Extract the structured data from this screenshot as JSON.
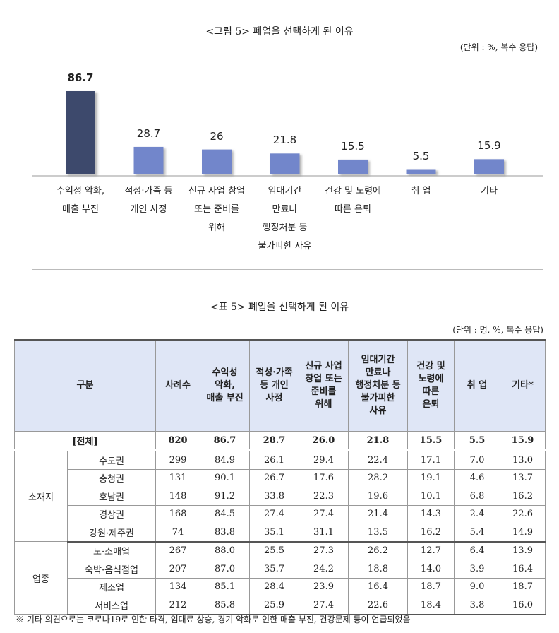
{
  "chart_data": {
    "type": "bar",
    "title": "<그림 5> 폐업을 선택하게 된 이유",
    "subtitle": "(단위 : %, 복수 응답)",
    "categories": [
      "수익성 악화,\n매출 부진",
      "적성·가족 등\n개인 사정",
      "신규 사업 창업\n또는 준비를\n위해",
      "임대기간\n만료나\n행정처분 등\n불가피한 사유",
      "건강 및 노령에\n따른 은퇴",
      "취 업",
      "기타"
    ],
    "values": [
      86.7,
      28.7,
      26.0,
      21.8,
      15.5,
      5.5,
      15.9
    ],
    "colors": [
      "#3d4a6c",
      "#7286cb",
      "#7286cb",
      "#7286cb",
      "#7286cb",
      "#7286cb",
      "#7286cb"
    ]
  },
  "table": {
    "title": "<표 5> 폐업을 선택하게 된 이유",
    "unit": "(단위 : 명, %, 복수 응답)",
    "header": [
      "구분",
      "사례수",
      "수익성\n악화,\n매출 부진",
      "적성·가족\n등 개인\n사정",
      "신규 사업\n창업 또는\n준비를\n위해",
      "임대기간\n만료나\n행정처분 등\n불가피한\n사유",
      "건강 및\n노령에\n따른\n은퇴",
      "취 업",
      "기타*"
    ],
    "total": {
      "label": "[전체]",
      "values": [
        "820",
        "86.7",
        "28.7",
        "26.0",
        "21.8",
        "15.5",
        "5.5",
        "15.9"
      ]
    },
    "groups": [
      {
        "name": "소재지",
        "rows": [
          {
            "label": "수도권",
            "values": [
              "299",
              "84.9",
              "26.1",
              "29.4",
              "22.4",
              "17.1",
              "7.0",
              "13.0"
            ]
          },
          {
            "label": "충청권",
            "values": [
              "131",
              "90.1",
              "26.7",
              "17.6",
              "28.2",
              "19.1",
              "4.6",
              "13.7"
            ]
          },
          {
            "label": "호남권",
            "values": [
              "148",
              "91.2",
              "33.8",
              "22.3",
              "19.6",
              "10.1",
              "6.8",
              "16.2"
            ]
          },
          {
            "label": "경상권",
            "values": [
              "168",
              "84.5",
              "27.4",
              "27.4",
              "21.4",
              "14.3",
              "2.4",
              "22.6"
            ]
          },
          {
            "label": "강원·제주권",
            "values": [
              "74",
              "83.8",
              "35.1",
              "31.1",
              "13.5",
              "16.2",
              "5.4",
              "14.9"
            ]
          }
        ]
      },
      {
        "name": "업종",
        "rows": [
          {
            "label": "도·소매업",
            "values": [
              "267",
              "88.0",
              "25.5",
              "27.3",
              "26.2",
              "12.7",
              "6.4",
              "13.9"
            ]
          },
          {
            "label": "숙박·음식점업",
            "values": [
              "207",
              "87.0",
              "35.7",
              "24.2",
              "18.8",
              "14.0",
              "3.9",
              "16.4"
            ]
          },
          {
            "label": "제조업",
            "values": [
              "134",
              "85.1",
              "28.4",
              "23.9",
              "16.4",
              "18.7",
              "9.0",
              "18.7"
            ]
          },
          {
            "label": "서비스업",
            "values": [
              "212",
              "85.8",
              "25.9",
              "27.4",
              "22.6",
              "18.4",
              "3.8",
              "16.0"
            ]
          }
        ]
      }
    ],
    "footnote": "※ 기타 의견으로는 코로나19로 인한 타격, 임대료 상승, 경기 악화로 인한 매출 부진, 건강문제 등이 언급되었음"
  }
}
